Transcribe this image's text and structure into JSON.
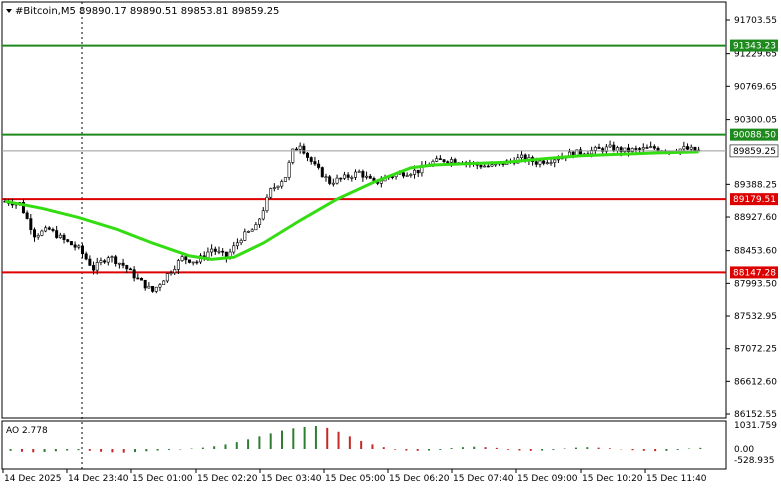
{
  "header": {
    "symbol_line": "#Bitcoin,M5  89890.17 89890.51 89853.81 89859.25"
  },
  "indicator": {
    "label": "AO 2.778",
    "scale_labels": [
      "1031.759",
      "0.00",
      "-528.935"
    ]
  },
  "colors": {
    "bull_candle": "#000000",
    "bear_candle": "#000000",
    "ma": "#33dd11",
    "resistance": "#1e8a1e",
    "support": "#dd0000",
    "ao_up": "#2e7d32",
    "ao_down": "#c62828"
  },
  "chart_data": {
    "type": "candlestick",
    "timeframe": "M5",
    "price_axis_ticks": [
      "91703.55",
      "91229.65",
      "90769.65",
      "90300.05",
      "89388.25",
      "88927.60",
      "88453.60",
      "87993.50",
      "87532.95",
      "87072.25",
      "86612.60",
      "86152.55"
    ],
    "ylim": [
      86152.55,
      91703.55
    ],
    "x_tick_labels": [
      "14 Dec 2025",
      "14 Dec 23:40",
      "15 Dec 01:00",
      "15 Dec 02:20",
      "15 Dec 03:40",
      "15 Dec 05:00",
      "15 Dec 06:20",
      "15 Dec 07:40",
      "15 Dec 09:00",
      "15 Dec 10:20",
      "15 Dec 11:40"
    ],
    "levels": [
      {
        "price": 91343.23,
        "label": "91343.23",
        "kind": "resistance"
      },
      {
        "price": 90088.5,
        "label": "90088.50",
        "kind": "resistance"
      },
      {
        "price": 89179.51,
        "label": "89179.51",
        "kind": "support"
      },
      {
        "price": 88147.28,
        "label": "88147.28",
        "kind": "support"
      }
    ],
    "current_price": {
      "price": 89859.25,
      "label": "89859.25"
    },
    "close_path": [
      [
        0,
        89150
      ],
      [
        4,
        89120
      ],
      [
        8,
        88680
      ],
      [
        12,
        88750
      ],
      [
        16,
        88600
      ],
      [
        20,
        88480
      ],
      [
        24,
        88200
      ],
      [
        28,
        88380
      ],
      [
        32,
        88250
      ],
      [
        36,
        88050
      ],
      [
        40,
        87880
      ],
      [
        44,
        88120
      ],
      [
        48,
        88350
      ],
      [
        52,
        88300
      ],
      [
        56,
        88480
      ],
      [
        60,
        88360
      ],
      [
        64,
        88640
      ],
      [
        68,
        88780
      ],
      [
        72,
        89300
      ],
      [
        76,
        89500
      ],
      [
        78,
        89850
      ],
      [
        80,
        89960
      ],
      [
        82,
        89780
      ],
      [
        84,
        89640
      ],
      [
        88,
        89420
      ],
      [
        92,
        89480
      ],
      [
        96,
        89560
      ],
      [
        100,
        89400
      ],
      [
        104,
        89500
      ],
      [
        108,
        89550
      ],
      [
        112,
        89580
      ],
      [
        116,
        89700
      ],
      [
        120,
        89740
      ],
      [
        124,
        89720
      ],
      [
        128,
        89660
      ],
      [
        132,
        89640
      ],
      [
        136,
        89700
      ],
      [
        140,
        89760
      ],
      [
        144,
        89700
      ],
      [
        148,
        89740
      ],
      [
        152,
        89800
      ],
      [
        156,
        89840
      ],
      [
        160,
        89870
      ],
      [
        164,
        89900
      ],
      [
        168,
        89860
      ],
      [
        172,
        89880
      ],
      [
        176,
        89900
      ],
      [
        180,
        89870
      ],
      [
        184,
        89890
      ],
      [
        188,
        89859
      ]
    ],
    "ma_path": [
      [
        0,
        89150
      ],
      [
        10,
        89050
      ],
      [
        20,
        88920
      ],
      [
        30,
        88760
      ],
      [
        40,
        88560
      ],
      [
        50,
        88380
      ],
      [
        56,
        88330
      ],
      [
        62,
        88360
      ],
      [
        70,
        88560
      ],
      [
        80,
        88880
      ],
      [
        90,
        89180
      ],
      [
        100,
        89420
      ],
      [
        110,
        89620
      ],
      [
        116,
        89660
      ],
      [
        126,
        89680
      ],
      [
        136,
        89700
      ],
      [
        146,
        89750
      ],
      [
        156,
        89790
      ],
      [
        166,
        89810
      ],
      [
        176,
        89830
      ],
      [
        188,
        89845
      ]
    ],
    "ao_values": [
      -0.12,
      -0.18,
      -0.22,
      -0.2,
      -0.15,
      -0.1,
      -0.08,
      -0.12,
      -0.18,
      -0.22,
      -0.24,
      -0.2,
      -0.15,
      -0.1,
      -0.06,
      -0.03,
      0.02,
      0.06,
      0.12,
      0.2,
      0.3,
      0.42,
      0.55,
      0.68,
      0.8,
      0.9,
      0.96,
      1.0,
      0.92,
      0.75,
      0.55,
      0.35,
      0.2,
      0.08,
      -0.04,
      -0.1,
      -0.12,
      -0.1,
      -0.06,
      0.04,
      0.08,
      0.1,
      0.08,
      0.05,
      -0.05,
      -0.1,
      -0.12,
      -0.1,
      -0.06,
      0.02,
      0.06,
      0.08,
      0.06,
      0.03,
      -0.02,
      -0.08,
      -0.12,
      -0.14,
      -0.12,
      -0.06,
      0.02,
      0.05
    ]
  }
}
